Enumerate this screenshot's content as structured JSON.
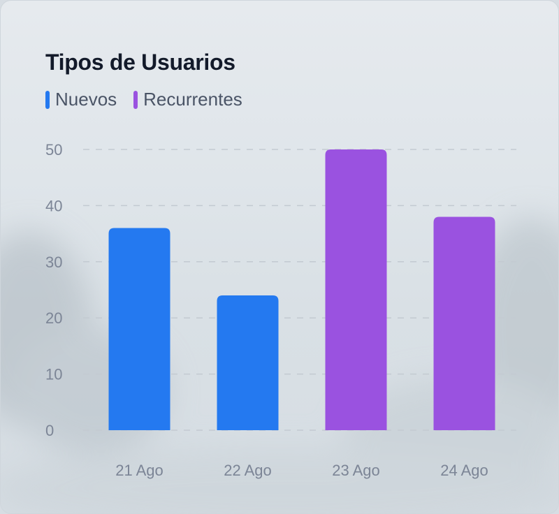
{
  "card": {
    "title": "Tipos de Usuarios"
  },
  "legend": [
    {
      "label": "Nuevos",
      "color": "#2479f0"
    },
    {
      "label": "Recurrentes",
      "color": "#9a52e0"
    }
  ],
  "chart_data": {
    "type": "bar",
    "title": "Tipos de Usuarios",
    "categories": [
      "21 Ago",
      "22 Ago",
      "23 Ago",
      "24 Ago"
    ],
    "values": [
      36,
      24,
      50,
      38
    ],
    "bar_series": [
      "Nuevos",
      "Nuevos",
      "Recurrentes",
      "Recurrentes"
    ],
    "series": [
      {
        "name": "Nuevos",
        "color": "#2479f0"
      },
      {
        "name": "Recurrentes",
        "color": "#9a52e0"
      }
    ],
    "yticks": [
      0,
      10,
      20,
      30,
      40,
      50
    ],
    "ylim": [
      0,
      50
    ],
    "grid": true,
    "legend_position": "top-left"
  }
}
